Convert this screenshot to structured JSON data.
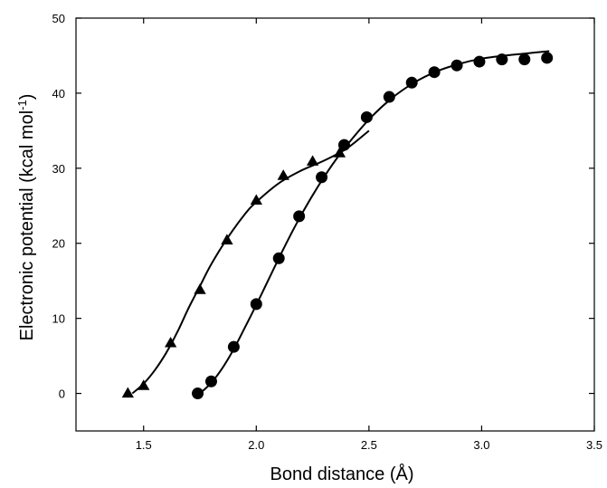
{
  "chart_data": {
    "type": "scatter",
    "title": "",
    "xlabel": "Bond distance (Å)",
    "ylabel_main": "Electronic potential (kcal mol",
    "ylabel_sup": "-1",
    "ylabel_tail": ")",
    "xlim": [
      1.2,
      3.5
    ],
    "ylim": [
      -5,
      50
    ],
    "xticks": [
      {
        "value": 1.5,
        "label": "1.5"
      },
      {
        "value": 2.0,
        "label": "2.0"
      },
      {
        "value": 2.5,
        "label": "2.5"
      },
      {
        "value": 3.0,
        "label": "3.0"
      },
      {
        "value": 3.5,
        "label": "3.5"
      }
    ],
    "yticks": [
      {
        "value": 0,
        "label": "0"
      },
      {
        "value": 10,
        "label": "10"
      },
      {
        "value": 20,
        "label": "20"
      },
      {
        "value": 30,
        "label": "30"
      },
      {
        "value": 40,
        "label": "40"
      },
      {
        "value": 50,
        "label": "50"
      }
    ],
    "grid": false,
    "series": [
      {
        "marker": "triangle",
        "points": [
          [
            1.43,
            0.0
          ],
          [
            1.5,
            1.0
          ],
          [
            1.62,
            6.7
          ],
          [
            1.75,
            13.8
          ],
          [
            1.87,
            20.4
          ],
          [
            2.0,
            25.7
          ],
          [
            2.12,
            29.0
          ],
          [
            2.25,
            30.9
          ],
          [
            2.37,
            32.0
          ]
        ],
        "fit": [
          [
            1.45,
            0.0
          ],
          [
            1.5,
            1.3
          ],
          [
            1.55,
            3.1
          ],
          [
            1.6,
            5.4
          ],
          [
            1.65,
            8.2
          ],
          [
            1.7,
            11.4
          ],
          [
            1.75,
            14.3
          ],
          [
            1.8,
            17.2
          ],
          [
            1.87,
            20.6
          ],
          [
            1.95,
            23.9
          ],
          [
            2.0,
            25.5
          ],
          [
            2.1,
            28.0
          ],
          [
            2.2,
            29.7
          ],
          [
            2.3,
            31.0
          ],
          [
            2.4,
            32.6
          ],
          [
            2.5,
            35.0
          ]
        ]
      },
      {
        "marker": "circle",
        "points": [
          [
            1.74,
            0.0
          ],
          [
            1.8,
            1.6
          ],
          [
            1.9,
            6.2
          ],
          [
            2.0,
            11.9
          ],
          [
            2.1,
            18.0
          ],
          [
            2.19,
            23.6
          ],
          [
            2.29,
            28.8
          ],
          [
            2.39,
            33.1
          ],
          [
            2.49,
            36.8
          ],
          [
            2.59,
            39.5
          ],
          [
            2.69,
            41.4
          ],
          [
            2.79,
            42.8
          ],
          [
            2.89,
            43.7
          ],
          [
            2.99,
            44.2
          ],
          [
            3.09,
            44.5
          ],
          [
            3.19,
            44.5
          ],
          [
            3.29,
            44.7
          ]
        ],
        "fit": [
          [
            1.75,
            0.0
          ],
          [
            1.8,
            1.4
          ],
          [
            1.85,
            3.4
          ],
          [
            1.9,
            5.9
          ],
          [
            1.95,
            8.8
          ],
          [
            2.0,
            11.8
          ],
          [
            2.05,
            14.9
          ],
          [
            2.1,
            18.0
          ],
          [
            2.15,
            21.0
          ],
          [
            2.2,
            23.8
          ],
          [
            2.25,
            26.4
          ],
          [
            2.3,
            28.8
          ],
          [
            2.35,
            31.0
          ],
          [
            2.4,
            33.0
          ],
          [
            2.5,
            36.5
          ],
          [
            2.6,
            39.3
          ],
          [
            2.7,
            41.4
          ],
          [
            2.8,
            42.9
          ],
          [
            2.9,
            43.9
          ],
          [
            3.0,
            44.6
          ],
          [
            3.1,
            45.0
          ],
          [
            3.2,
            45.3
          ],
          [
            3.3,
            45.6
          ]
        ]
      }
    ]
  }
}
